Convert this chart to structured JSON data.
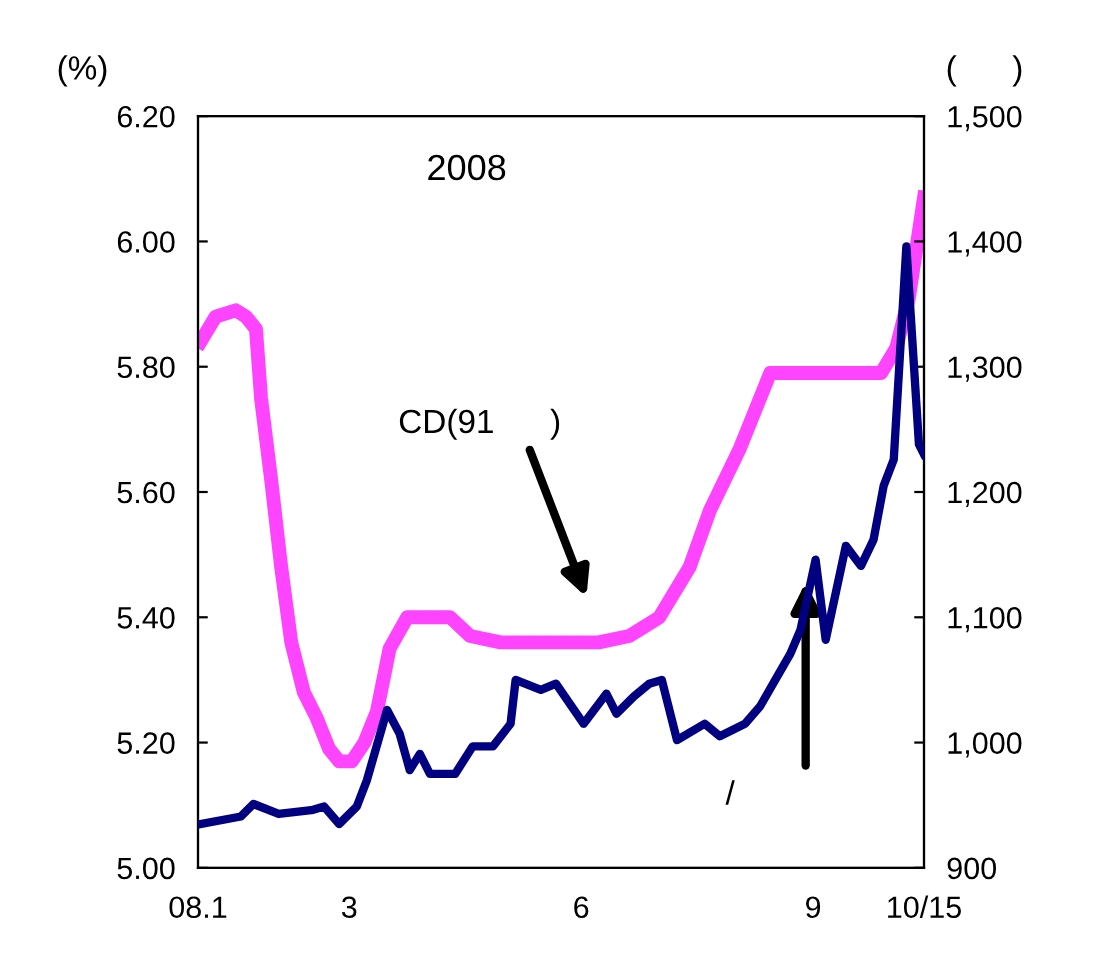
{
  "chart_data": {
    "type": "line",
    "title": "2008",
    "ylabel": "(%)",
    "y2label": "(      )",
    "series": [
      {
        "color": "#ff44ff",
        "x": [
          "2008-01-02",
          "2008-01-08",
          "2008-01-16",
          "2008-01-20",
          "2008-01-24",
          "2008-01-26",
          "2008-01-30",
          "2008-02-03",
          "2008-02-07",
          "2008-02-12",
          "2008-02-17",
          "2008-02-22",
          "2008-02-26",
          "2008-03-02",
          "2008-03-07",
          "2008-03-12",
          "2008-03-17",
          "2008-03-24",
          "2008-03-31",
          "2008-04-10",
          "2008-04-18",
          "2008-04-30",
          "2008-05-24",
          "2008-06-08",
          "2008-06-20",
          "2008-07-02",
          "2008-07-14",
          "2008-07-22",
          "2008-08-03",
          "2008-08-15",
          "2008-08-27",
          "2008-09-28",
          "2008-10-04",
          "2008-10-09",
          "2008-10-15"
        ],
        "values": [
          5.84,
          5.88,
          5.89,
          5.88,
          5.86,
          5.75,
          5.62,
          5.48,
          5.36,
          5.28,
          5.24,
          5.19,
          5.17,
          5.17,
          5.2,
          5.25,
          5.35,
          5.4,
          5.4,
          5.4,
          5.37,
          5.36,
          5.36,
          5.36,
          5.37,
          5.4,
          5.48,
          5.57,
          5.67,
          5.79,
          5.79,
          5.79,
          5.83,
          5.91,
          6.07
        ]
      },
      {
        "color": "#000080",
        "axis": "y2",
        "x": [
          "2008-01-02",
          "2008-01-18",
          "2008-01-23",
          "2008-02-02",
          "2008-02-15",
          "2008-02-20",
          "2008-02-26",
          "2008-03-04",
          "2008-03-08",
          "2008-03-16",
          "2008-03-21",
          "2008-03-25",
          "2008-03-29",
          "2008-04-02",
          "2008-04-12",
          "2008-04-19",
          "2008-04-27",
          "2008-05-04",
          "2008-05-06",
          "2008-05-16",
          "2008-05-22",
          "2008-06-02",
          "2008-06-11",
          "2008-06-15",
          "2008-06-22",
          "2008-06-28",
          "2008-07-03",
          "2008-07-09",
          "2008-07-20",
          "2008-07-26",
          "2008-08-05",
          "2008-08-11",
          "2008-08-17",
          "2008-08-23",
          "2008-08-27",
          "2008-09-02",
          "2008-09-06",
          "2008-09-14",
          "2008-09-20",
          "2008-09-25",
          "2008-09-29",
          "2008-10-03",
          "2008-10-08",
          "2008-10-13",
          "2008-10-15"
        ],
        "values": [
          935,
          941,
          951,
          943,
          946,
          949,
          935,
          949,
          970,
          1026,
          1007,
          978,
          991,
          975,
          975,
          997,
          997,
          1015,
          1050,
          1042,
          1047,
          1015,
          1039,
          1023,
          1037,
          1047,
          1050,
          1002,
          1015,
          1005,
          1015,
          1029,
          1050,
          1071,
          1090,
          1146,
          1082,
          1157,
          1141,
          1162,
          1205,
          1226,
          1396,
          1238,
          1230
        ]
      }
    ],
    "xlim": [
      "2008-01-01",
      "2008-10-15"
    ],
    "xticks": [
      {
        "value": "2008-01-01",
        "label": "08.1"
      },
      {
        "value": "2008-03-01",
        "label": "3"
      },
      {
        "value": "2008-06-01",
        "label": "6"
      },
      {
        "value": "2008-09-01",
        "label": "9"
      },
      {
        "value": "2008-10-15",
        "label": "10/15"
      }
    ],
    "ylim": [
      5.0,
      6.2
    ],
    "yticks": [
      {
        "value": 5.0,
        "label": "5.00"
      },
      {
        "value": 5.2,
        "label": "5.20"
      },
      {
        "value": 5.4,
        "label": "5.40"
      },
      {
        "value": 5.6,
        "label": "5.60"
      },
      {
        "value": 5.8,
        "label": "5.80"
      },
      {
        "value": 6.0,
        "label": "6.00"
      },
      {
        "value": 6.2,
        "label": "6.20"
      }
    ],
    "y2lim": [
      900,
      1500
    ],
    "y2ticks": [
      900,
      {
        "value": 1000,
        "label": "1,000"
      },
      {
        "value": 1100,
        "label": "1,100"
      },
      {
        "value": 1200,
        "label": "1,200"
      },
      {
        "value": 1300,
        "label": "1,300"
      },
      {
        "value": 1400,
        "label": "1,400"
      },
      {
        "value": 1500,
        "label": "1,500"
      }
    ],
    "annotations": [
      "CD(91      )",
      "/"
    ],
    "grid": false,
    "legend": false,
    "line_style": "solid",
    "marker": "none"
  }
}
